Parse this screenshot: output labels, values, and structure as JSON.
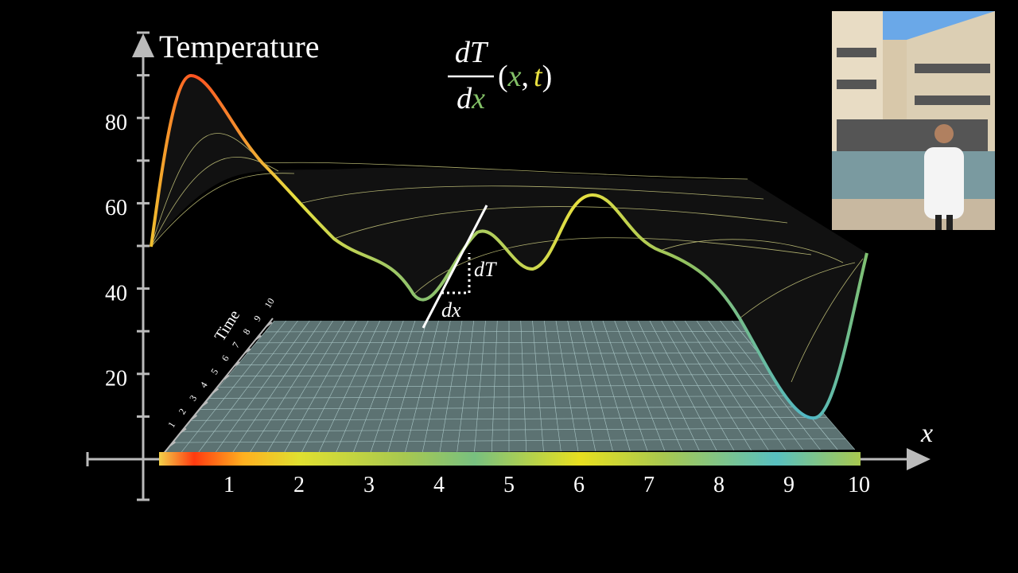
{
  "axis_title": "Temperature",
  "x_axis_label": "x",
  "time_axis_label": "Time",
  "y_tick_labels": [
    "80",
    "60",
    "40",
    "20"
  ],
  "x_tick_labels": [
    "1",
    "2",
    "3",
    "4",
    "5",
    "6",
    "7",
    "8",
    "9",
    "10"
  ],
  "time_tick_labels": [
    "1",
    "2",
    "3",
    "4",
    "5",
    "6",
    "7",
    "8",
    "9",
    "10"
  ],
  "formula": {
    "numerator": "dT",
    "denominator_d": "d",
    "denominator_x": "x",
    "open": "(",
    "x": "x",
    "comma": ",",
    "t": "t",
    "close": ")"
  },
  "annotations": {
    "dT": "dT",
    "dx": "dx"
  }
}
